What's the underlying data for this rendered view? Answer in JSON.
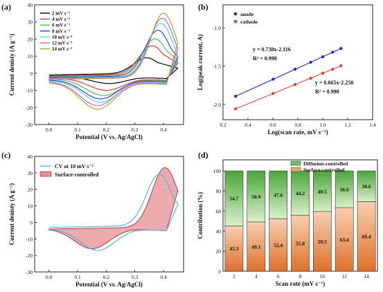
{
  "chart_data": [
    {
      "panel": "(a)",
      "type": "line",
      "xlabel": "Potential (V vs. Ag/AgCl)",
      "ylabel": "Current denisty (A g⁻¹)",
      "xlim": [
        -0.05,
        0.47
      ],
      "ylim": [
        -30,
        40
      ],
      "xticks": [
        "0.0",
        "0.1",
        "0.2",
        "0.3",
        "0.4"
      ],
      "yticks": [
        "-30",
        "-20",
        "-10",
        "0",
        "10",
        "20",
        "30",
        "40"
      ],
      "legend_position": "top-left",
      "series": [
        {
          "name": "2 mV s⁻¹",
          "color": "#000000",
          "anodic_peak": [
            0.34,
            8
          ],
          "cathodic_peak": [
            0.21,
            -6
          ],
          "start_anodic": -1.0,
          "start_cathodic": -2.0
        },
        {
          "name": "4 mV s⁻¹",
          "color": "#e0323a",
          "anodic_peak": [
            0.36,
            15
          ],
          "cathodic_peak": [
            0.2,
            -10
          ],
          "start_anodic": -1.5,
          "start_cathodic": -3.0
        },
        {
          "name": "6 mV s⁻¹",
          "color": "#4ec04e",
          "anodic_peak": [
            0.37,
            19
          ],
          "cathodic_peak": [
            0.19,
            -13
          ],
          "start_anodic": -2.0,
          "start_cathodic": -3.5
        },
        {
          "name": "8 mV s⁻¹",
          "color": "#2f3fe0",
          "anodic_peak": [
            0.38,
            24
          ],
          "cathodic_peak": [
            0.18,
            -15
          ],
          "start_anodic": -2.5,
          "start_cathodic": -4.0
        },
        {
          "name": "10 mV s⁻¹",
          "color": "#4fd6e0",
          "anodic_peak": [
            0.39,
            28
          ],
          "cathodic_peak": [
            0.18,
            -17
          ],
          "start_anodic": -3.0,
          "start_cathodic": -4.5
        },
        {
          "name": "12 mV s⁻¹",
          "color": "#e05ad6",
          "anodic_peak": [
            0.395,
            31
          ],
          "cathodic_peak": [
            0.17,
            -19
          ],
          "start_anodic": -3.3,
          "start_cathodic": -5.0
        },
        {
          "name": "14 mV s⁻¹",
          "color": "#a0a832",
          "anodic_peak": [
            0.4,
            34
          ],
          "cathodic_peak": [
            0.17,
            -21
          ],
          "start_anodic": -3.6,
          "start_cathodic": -5.5
        }
      ]
    },
    {
      "panel": "(b)",
      "type": "scatter",
      "xlabel": "Log(scan rate, mV s⁻¹)",
      "ylabel": "Log(peak current, A)",
      "xlim": [
        0.2,
        1.4
      ],
      "ylim": [
        -2.2,
        -0.7
      ],
      "xticks": [
        "0.2",
        "0.4",
        "0.6",
        "0.8",
        "1.0",
        "1.2",
        "1.4"
      ],
      "yticks": [
        "-2.0",
        "-1.5",
        "-1.0"
      ],
      "legend_position": "top-left",
      "series": [
        {
          "name": "anode",
          "color": "#1f2fc8",
          "x": [
            0.301,
            0.602,
            0.778,
            0.903,
            1.0,
            1.079,
            1.146
          ],
          "y": [
            -1.894,
            -1.671,
            -1.541,
            -1.449,
            -1.378,
            -1.318,
            -1.27
          ],
          "fit_equation": "y = 0.738x-2.116",
          "r2": "R² = 0.998"
        },
        {
          "name": "cathode",
          "color": "#e0453a",
          "x": [
            0.301,
            0.602,
            0.778,
            0.903,
            1.0,
            1.079,
            1.146
          ],
          "y": [
            -2.058,
            -1.858,
            -1.741,
            -1.658,
            -1.593,
            -1.541,
            -1.496
          ],
          "fit_equation": "y = 0.665x-2.258",
          "r2": "R² = 0.998"
        }
      ]
    },
    {
      "panel": "(c)",
      "type": "line",
      "xlabel": "Potential (V vs. Ag/AgCl)",
      "ylabel": "Current denisty (A g⁻¹)",
      "xlim": [
        -0.05,
        0.47
      ],
      "ylim": [
        -30,
        40
      ],
      "xticks": [
        "0.0",
        "0.1",
        "0.2",
        "0.3",
        "0.4"
      ],
      "yticks": [
        "-30",
        "-20",
        "-10",
        "0",
        "10",
        "20",
        "30",
        "40"
      ],
      "legend_position": "top-left",
      "series": [
        {
          "name": "CV at 10 mV s⁻¹",
          "color": "#5ab4e0",
          "anodic_peak": [
            0.385,
            28
          ],
          "cathodic_peak": [
            0.17,
            -17
          ],
          "start_anodic": -3,
          "start_cathodic": -4
        },
        {
          "name": "Surface-controlled",
          "color": "#d9666f",
          "anodic_peak": [
            0.405,
            32
          ],
          "cathodic_peak": [
            0.15,
            -16
          ],
          "start_anodic": -4,
          "start_cathodic": -4
        }
      ]
    },
    {
      "panel": "(d)",
      "type": "bar",
      "xlabel": "Scan rate (mV s⁻¹)",
      "ylabel": "Contribution (%)",
      "ylim": [
        0,
        100
      ],
      "yticks": [
        "0",
        "20",
        "40",
        "60",
        "80",
        "100"
      ],
      "legend_position": "top",
      "categories": [
        "2",
        "4",
        "6",
        "8",
        "10",
        "12",
        "14"
      ],
      "series": [
        {
          "name": "Surface-controlled",
          "color": "#f2a470",
          "values": [
            45.3,
            49.1,
            52.4,
            55.8,
            59.5,
            63.4,
            69.4
          ],
          "labels": [
            "45.3",
            "49.1",
            "52.4",
            "55.8",
            "59.5",
            "63.4",
            "69.4"
          ]
        },
        {
          "name": "Diffusion-controlled",
          "color": "#6cc060",
          "values": [
            54.7,
            50.9,
            47.6,
            44.2,
            40.5,
            36.6,
            30.6
          ],
          "labels": [
            "54.7",
            "50.9",
            "47.6",
            "44.2",
            "40.5",
            "36.6",
            "30.6"
          ]
        }
      ]
    }
  ]
}
